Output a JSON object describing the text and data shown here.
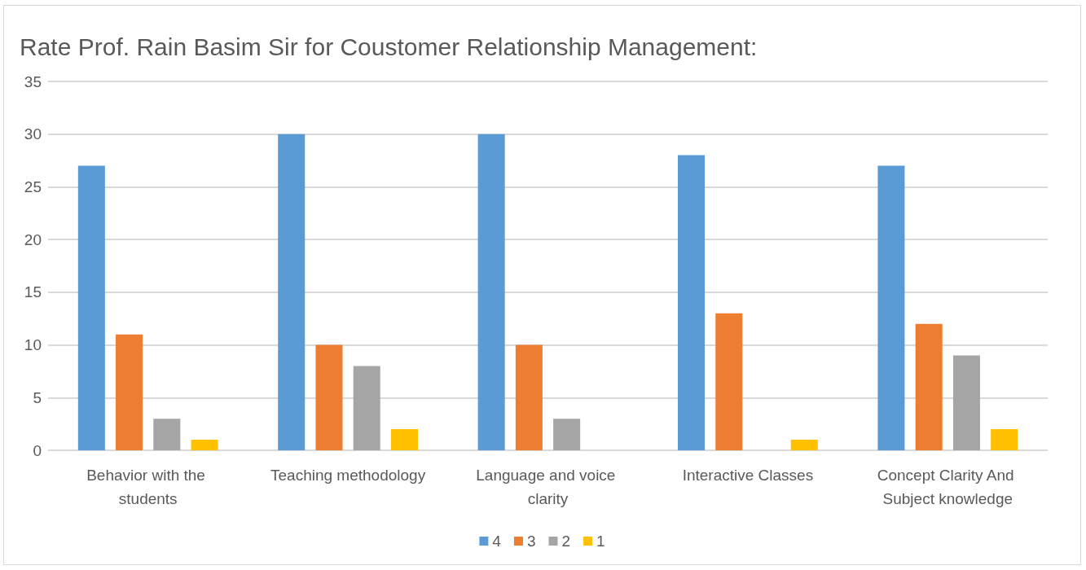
{
  "chart_data": {
    "type": "bar",
    "title": "Rate Prof. Rain Basim Sir for Coustomer Relationship Management:",
    "categories": [
      "Behavior with the students",
      "Teaching methodology",
      "Language and voice clarity",
      "Interactive Classes",
      "Concept Clarity And Subject knowledge"
    ],
    "series": [
      {
        "name": "4",
        "color": "#5b9bd5",
        "values": [
          27,
          30,
          30,
          28,
          27
        ]
      },
      {
        "name": "3",
        "color": "#ed7d31",
        "values": [
          11,
          10,
          10,
          13,
          12
        ]
      },
      {
        "name": "2",
        "color": "#a5a5a5",
        "values": [
          3,
          8,
          3,
          0,
          9
        ]
      },
      {
        "name": "1",
        "color": "#ffc000",
        "values": [
          1,
          2,
          0,
          1,
          2
        ]
      }
    ],
    "ylim": [
      0,
      35
    ],
    "yticks": [
      0,
      5,
      10,
      15,
      20,
      25,
      30,
      35
    ],
    "grid": "y",
    "legend": "bottom"
  }
}
